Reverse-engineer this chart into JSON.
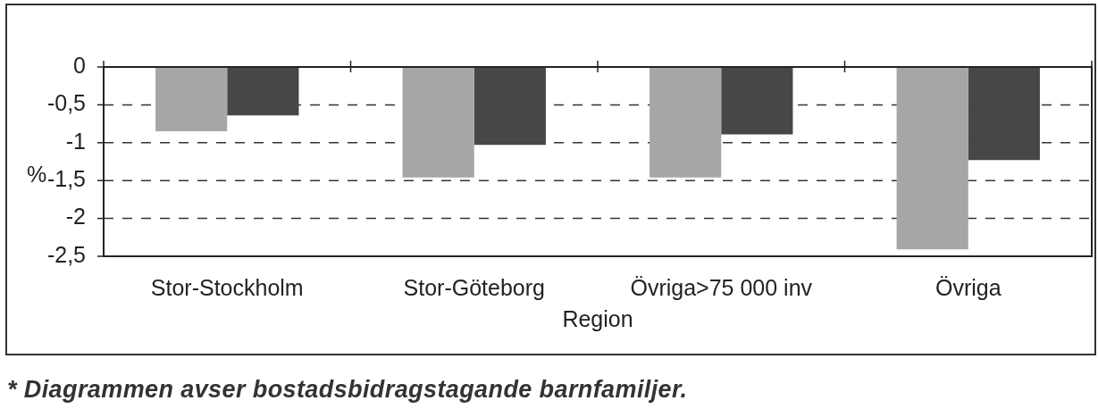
{
  "chart_data": {
    "type": "bar",
    "xlabel": "Region",
    "ylabel": "%",
    "categories": [
      "Stor-Stockholm",
      "Stor-Göteborg",
      "Övriga>75 000 inv",
      "Övriga"
    ],
    "series": [
      {
        "color": "#a6a6a6",
        "values": [
          -0.85,
          -1.46,
          -1.46,
          -2.41
        ]
      },
      {
        "color": "#474747",
        "values": [
          -0.64,
          -1.03,
          -0.89,
          -1.23
        ]
      }
    ],
    "ylim": [
      -2.5,
      0
    ],
    "yticks": [
      {
        "value": -2.5,
        "label": "-2,5"
      },
      -2,
      {
        "value": -1.5,
        "label": "-1,5"
      },
      -1,
      {
        "value": -0.5,
        "label": "-0,5"
      },
      0
    ],
    "grid": "y",
    "annotations": [
      "* Diagrammen avser bostadsbidragstagande barnfamiljer."
    ]
  }
}
